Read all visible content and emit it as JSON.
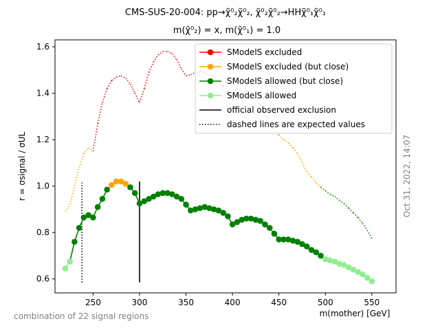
{
  "chart_data": {
    "type": "line",
    "title": "CMS-SUS-20-004: pp→χ̃⁰₂χ̃⁰₂, χ̃⁰₂χ̃⁰₂→HHχ̃⁰₁χ̃⁰₁",
    "subtitle": "m(χ̃⁰₂) = x, m(χ̃⁰₁) = 1.0",
    "xlabel": "m(mother) [GeV]",
    "ylabel": "r = σsignal / σUL",
    "xlim": [
      209,
      576
    ],
    "ylim": [
      0.54,
      1.63
    ],
    "xticks": [
      250,
      300,
      350,
      400,
      450,
      500,
      550
    ],
    "yticks": [
      0.6,
      0.8,
      1.0,
      1.2,
      1.4,
      1.6
    ],
    "grid": false,
    "legend_position": "top-right",
    "colors": {
      "excluded": "#ff0000",
      "excluded_close": "#ffa500",
      "allowed_close": "#008000",
      "allowed": "#90ee90",
      "official": "#000000"
    },
    "legend": [
      {
        "label": "SModelS excluded",
        "style": "marker",
        "color": "#ff0000"
      },
      {
        "label": "SModelS excluded (but close)",
        "style": "marker",
        "color": "#ffa500"
      },
      {
        "label": "SModelS allowed (but close)",
        "style": "marker",
        "color": "#008000"
      },
      {
        "label": "SModelS allowed",
        "style": "marker",
        "color": "#90ee90"
      },
      {
        "label": "official observed exclusion",
        "style": "solid",
        "color": "#000000"
      },
      {
        "label": "dashed lines are expected values",
        "style": "dotted",
        "color": "#000000"
      }
    ],
    "observed_points": [
      {
        "x": 220,
        "y": 0.645,
        "cls": "allowed"
      },
      {
        "x": 225,
        "y": 0.675,
        "cls": "allowed"
      },
      {
        "x": 230,
        "y": 0.76,
        "cls": "allowed_close"
      },
      {
        "x": 235,
        "y": 0.82,
        "cls": "allowed_close"
      },
      {
        "x": 240,
        "y": 0.865,
        "cls": "allowed_close"
      },
      {
        "x": 245,
        "y": 0.875,
        "cls": "allowed_close"
      },
      {
        "x": 250,
        "y": 0.865,
        "cls": "allowed_close"
      },
      {
        "x": 255,
        "y": 0.91,
        "cls": "allowed_close"
      },
      {
        "x": 260,
        "y": 0.945,
        "cls": "allowed_close"
      },
      {
        "x": 265,
        "y": 0.985,
        "cls": "allowed_close"
      },
      {
        "x": 270,
        "y": 1.005,
        "cls": "excluded_close"
      },
      {
        "x": 275,
        "y": 1.02,
        "cls": "excluded_close"
      },
      {
        "x": 280,
        "y": 1.02,
        "cls": "excluded_close"
      },
      {
        "x": 285,
        "y": 1.01,
        "cls": "excluded_close"
      },
      {
        "x": 290,
        "y": 0.995,
        "cls": "allowed_close"
      },
      {
        "x": 295,
        "y": 0.97,
        "cls": "allowed_close"
      },
      {
        "x": 300,
        "y": 0.925,
        "cls": "allowed_close"
      },
      {
        "x": 305,
        "y": 0.935,
        "cls": "allowed_close"
      },
      {
        "x": 310,
        "y": 0.945,
        "cls": "allowed_close"
      },
      {
        "x": 315,
        "y": 0.955,
        "cls": "allowed_close"
      },
      {
        "x": 320,
        "y": 0.965,
        "cls": "allowed_close"
      },
      {
        "x": 325,
        "y": 0.97,
        "cls": "allowed_close"
      },
      {
        "x": 330,
        "y": 0.97,
        "cls": "allowed_close"
      },
      {
        "x": 335,
        "y": 0.965,
        "cls": "allowed_close"
      },
      {
        "x": 340,
        "y": 0.955,
        "cls": "allowed_close"
      },
      {
        "x": 345,
        "y": 0.945,
        "cls": "allowed_close"
      },
      {
        "x": 350,
        "y": 0.92,
        "cls": "allowed_close"
      },
      {
        "x": 355,
        "y": 0.895,
        "cls": "allowed_close"
      },
      {
        "x": 360,
        "y": 0.9,
        "cls": "allowed_close"
      },
      {
        "x": 365,
        "y": 0.905,
        "cls": "allowed_close"
      },
      {
        "x": 370,
        "y": 0.91,
        "cls": "allowed_close"
      },
      {
        "x": 375,
        "y": 0.905,
        "cls": "allowed_close"
      },
      {
        "x": 380,
        "y": 0.9,
        "cls": "allowed_close"
      },
      {
        "x": 385,
        "y": 0.895,
        "cls": "allowed_close"
      },
      {
        "x": 390,
        "y": 0.885,
        "cls": "allowed_close"
      },
      {
        "x": 395,
        "y": 0.87,
        "cls": "allowed_close"
      },
      {
        "x": 400,
        "y": 0.835,
        "cls": "allowed_close"
      },
      {
        "x": 405,
        "y": 0.845,
        "cls": "allowed_close"
      },
      {
        "x": 410,
        "y": 0.855,
        "cls": "allowed_close"
      },
      {
        "x": 415,
        "y": 0.86,
        "cls": "allowed_close"
      },
      {
        "x": 420,
        "y": 0.86,
        "cls": "allowed_close"
      },
      {
        "x": 425,
        "y": 0.855,
        "cls": "allowed_close"
      },
      {
        "x": 430,
        "y": 0.85,
        "cls": "allowed_close"
      },
      {
        "x": 435,
        "y": 0.835,
        "cls": "allowed_close"
      },
      {
        "x": 440,
        "y": 0.82,
        "cls": "allowed_close"
      },
      {
        "x": 445,
        "y": 0.795,
        "cls": "allowed_close"
      },
      {
        "x": 450,
        "y": 0.77,
        "cls": "allowed_close"
      },
      {
        "x": 455,
        "y": 0.77,
        "cls": "allowed_close"
      },
      {
        "x": 460,
        "y": 0.77,
        "cls": "allowed_close"
      },
      {
        "x": 465,
        "y": 0.765,
        "cls": "allowed_close"
      },
      {
        "x": 470,
        "y": 0.76,
        "cls": "allowed_close"
      },
      {
        "x": 475,
        "y": 0.75,
        "cls": "allowed_close"
      },
      {
        "x": 480,
        "y": 0.74,
        "cls": "allowed_close"
      },
      {
        "x": 485,
        "y": 0.725,
        "cls": "allowed_close"
      },
      {
        "x": 490,
        "y": 0.715,
        "cls": "allowed_close"
      },
      {
        "x": 495,
        "y": 0.7,
        "cls": "allowed_close"
      },
      {
        "x": 500,
        "y": 0.685,
        "cls": "allowed"
      },
      {
        "x": 505,
        "y": 0.68,
        "cls": "allowed"
      },
      {
        "x": 510,
        "y": 0.675,
        "cls": "allowed"
      },
      {
        "x": 515,
        "y": 0.665,
        "cls": "allowed"
      },
      {
        "x": 520,
        "y": 0.66,
        "cls": "allowed"
      },
      {
        "x": 525,
        "y": 0.65,
        "cls": "allowed"
      },
      {
        "x": 530,
        "y": 0.64,
        "cls": "allowed"
      },
      {
        "x": 535,
        "y": 0.63,
        "cls": "allowed"
      },
      {
        "x": 540,
        "y": 0.62,
        "cls": "allowed"
      },
      {
        "x": 545,
        "y": 0.605,
        "cls": "allowed"
      },
      {
        "x": 550,
        "y": 0.59,
        "cls": "allowed"
      }
    ],
    "expected_curve": [
      {
        "x": 220,
        "y": 0.89,
        "cls": "allowed_close"
      },
      {
        "x": 225,
        "y": 0.92,
        "cls": "excluded_close"
      },
      {
        "x": 230,
        "y": 1.0,
        "cls": "excluded_close"
      },
      {
        "x": 235,
        "y": 1.08,
        "cls": "excluded_close"
      },
      {
        "x": 240,
        "y": 1.14,
        "cls": "excluded_close"
      },
      {
        "x": 245,
        "y": 1.165,
        "cls": "excluded_close"
      },
      {
        "x": 250,
        "y": 1.15,
        "cls": "excluded_close"
      },
      {
        "x": 255,
        "y": 1.27,
        "cls": "excluded"
      },
      {
        "x": 260,
        "y": 1.36,
        "cls": "excluded"
      },
      {
        "x": 265,
        "y": 1.42,
        "cls": "excluded"
      },
      {
        "x": 270,
        "y": 1.455,
        "cls": "excluded"
      },
      {
        "x": 275,
        "y": 1.47,
        "cls": "excluded"
      },
      {
        "x": 280,
        "y": 1.475,
        "cls": "excluded"
      },
      {
        "x": 285,
        "y": 1.465,
        "cls": "excluded"
      },
      {
        "x": 290,
        "y": 1.44,
        "cls": "excluded"
      },
      {
        "x": 295,
        "y": 1.4,
        "cls": "excluded"
      },
      {
        "x": 300,
        "y": 1.36,
        "cls": "excluded"
      },
      {
        "x": 305,
        "y": 1.42,
        "cls": "excluded"
      },
      {
        "x": 310,
        "y": 1.49,
        "cls": "excluded"
      },
      {
        "x": 315,
        "y": 1.535,
        "cls": "excluded"
      },
      {
        "x": 320,
        "y": 1.565,
        "cls": "excluded"
      },
      {
        "x": 325,
        "y": 1.58,
        "cls": "excluded"
      },
      {
        "x": 330,
        "y": 1.58,
        "cls": "excluded"
      },
      {
        "x": 335,
        "y": 1.57,
        "cls": "excluded"
      },
      {
        "x": 340,
        "y": 1.545,
        "cls": "excluded"
      },
      {
        "x": 345,
        "y": 1.505,
        "cls": "excluded"
      },
      {
        "x": 350,
        "y": 1.475,
        "cls": "excluded"
      },
      {
        "x": 355,
        "y": 1.48,
        "cls": "excluded"
      },
      {
        "x": 360,
        "y": 1.49,
        "cls": "excluded"
      },
      {
        "x": 365,
        "y": 1.495,
        "cls": "excluded"
      },
      {
        "x": 370,
        "y": 1.49,
        "cls": "excluded"
      },
      {
        "x": 375,
        "y": 1.48,
        "cls": "excluded"
      },
      {
        "x": 380,
        "y": 1.47,
        "cls": "excluded"
      },
      {
        "x": 385,
        "y": 1.45,
        "cls": "excluded"
      },
      {
        "x": 390,
        "y": 1.43,
        "cls": "excluded"
      },
      {
        "x": 395,
        "y": 1.405,
        "cls": "excluded"
      },
      {
        "x": 400,
        "y": 1.37,
        "cls": "excluded"
      },
      {
        "x": 405,
        "y": 1.39,
        "cls": "excluded"
      },
      {
        "x": 410,
        "y": 1.405,
        "cls": "excluded"
      },
      {
        "x": 415,
        "y": 1.41,
        "cls": "excluded"
      },
      {
        "x": 420,
        "y": 1.4,
        "cls": "excluded"
      },
      {
        "x": 425,
        "y": 1.38,
        "cls": "excluded"
      },
      {
        "x": 430,
        "y": 1.35,
        "cls": "excluded"
      },
      {
        "x": 435,
        "y": 1.31,
        "cls": "excluded"
      },
      {
        "x": 440,
        "y": 1.27,
        "cls": "excluded"
      },
      {
        "x": 445,
        "y": 1.24,
        "cls": "excluded_close"
      },
      {
        "x": 450,
        "y": 1.22,
        "cls": "excluded_close"
      },
      {
        "x": 455,
        "y": 1.2,
        "cls": "excluded_close"
      },
      {
        "x": 460,
        "y": 1.185,
        "cls": "excluded_close"
      },
      {
        "x": 465,
        "y": 1.165,
        "cls": "excluded_close"
      },
      {
        "x": 470,
        "y": 1.14,
        "cls": "excluded_close"
      },
      {
        "x": 475,
        "y": 1.1,
        "cls": "excluded_close"
      },
      {
        "x": 480,
        "y": 1.06,
        "cls": "excluded_close"
      },
      {
        "x": 485,
        "y": 1.04,
        "cls": "excluded_close"
      },
      {
        "x": 490,
        "y": 1.015,
        "cls": "excluded_close"
      },
      {
        "x": 495,
        "y": 0.995,
        "cls": "excluded_close"
      },
      {
        "x": 500,
        "y": 0.98,
        "cls": "allowed_close"
      },
      {
        "x": 505,
        "y": 0.965,
        "cls": "allowed_close"
      },
      {
        "x": 510,
        "y": 0.955,
        "cls": "allowed_close"
      },
      {
        "x": 515,
        "y": 0.94,
        "cls": "allowed_close"
      },
      {
        "x": 520,
        "y": 0.925,
        "cls": "allowed_close"
      },
      {
        "x": 525,
        "y": 0.905,
        "cls": "allowed_close"
      },
      {
        "x": 530,
        "y": 0.885,
        "cls": "allowed_close"
      },
      {
        "x": 535,
        "y": 0.865,
        "cls": "allowed_close"
      },
      {
        "x": 540,
        "y": 0.84,
        "cls": "allowed_close"
      },
      {
        "x": 545,
        "y": 0.81,
        "cls": "allowed_close"
      },
      {
        "x": 550,
        "y": 0.775,
        "cls": "allowed_close"
      }
    ],
    "official_observed_exclusion": [
      {
        "x": 300,
        "y_range": [
          0.585,
          1.02
        ]
      }
    ],
    "official_expected_exclusion": [
      {
        "x": 238,
        "y_range": [
          0.585,
          1.015
        ]
      }
    ],
    "annotations": {
      "timestamp": "Oct 31, 2022, 14:07",
      "regions_note": "combination of 22 signal regions"
    }
  }
}
